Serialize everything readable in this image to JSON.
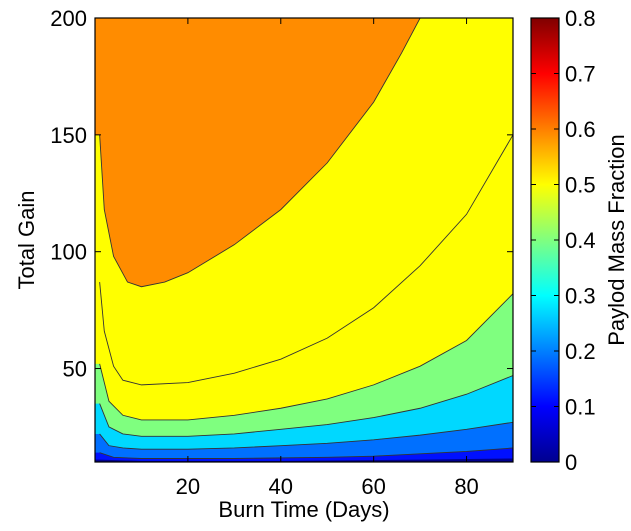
{
  "chart_data": {
    "type": "heatmap",
    "subtype": "filled-contour",
    "title": "",
    "xlabel": "Burn Time (Days)",
    "ylabel": "Total Gain",
    "xlim": [
      0,
      90
    ],
    "ylim": [
      10,
      200
    ],
    "xticks": [
      20,
      40,
      60,
      80
    ],
    "yticks": [
      50,
      100,
      150,
      200
    ],
    "grid": false,
    "colorbar": {
      "label": "Paylod Mass Fraction",
      "range": [
        0,
        0.8
      ],
      "ticks": [
        0,
        0.1,
        0.2,
        0.3,
        0.4,
        0.5,
        0.6,
        0.7,
        0.8
      ],
      "colormap": "jet",
      "placement": "right"
    },
    "contour_levels": [
      0,
      0.1,
      0.2,
      0.3,
      0.4,
      0.5,
      0.6
    ],
    "regions": [
      {
        "level": 0.0,
        "color": "#00008f"
      },
      {
        "level": 0.05,
        "color": "#0010ff"
      },
      {
        "level": 0.15,
        "color": "#0070ff"
      },
      {
        "level": 0.25,
        "color": "#00d8ff"
      },
      {
        "level": 0.35,
        "color": "#7fff7f"
      },
      {
        "level": 0.45,
        "color": "#ffff00"
      },
      {
        "level": 0.55,
        "color": "#ff8c00"
      }
    ],
    "contours": [
      {
        "level": 0.6,
        "points": [
          [
            1,
            150
          ],
          [
            2,
            118
          ],
          [
            4,
            98
          ],
          [
            7,
            87
          ],
          [
            10,
            85
          ],
          [
            15,
            87
          ],
          [
            20,
            91
          ],
          [
            30,
            103
          ],
          [
            40,
            118
          ],
          [
            50,
            138
          ],
          [
            60,
            164
          ],
          [
            66,
            185
          ],
          [
            70,
            200
          ]
        ]
      },
      {
        "level": 0.5,
        "points": [
          [
            1,
            87
          ],
          [
            2,
            66
          ],
          [
            4,
            51
          ],
          [
            6,
            45
          ],
          [
            10,
            43
          ],
          [
            20,
            44
          ],
          [
            30,
            48
          ],
          [
            40,
            54
          ],
          [
            50,
            63
          ],
          [
            60,
            76
          ],
          [
            70,
            94
          ],
          [
            80,
            116
          ],
          [
            90,
            150
          ]
        ]
      },
      {
        "level": 0.4,
        "points": [
          [
            1,
            52
          ],
          [
            3,
            36
          ],
          [
            6,
            30
          ],
          [
            10,
            28
          ],
          [
            20,
            28
          ],
          [
            30,
            30
          ],
          [
            40,
            33
          ],
          [
            50,
            37
          ],
          [
            60,
            43
          ],
          [
            70,
            51
          ],
          [
            80,
            62
          ],
          [
            90,
            82
          ]
        ]
      },
      {
        "level": 0.3,
        "points": [
          [
            1,
            35
          ],
          [
            3,
            25
          ],
          [
            6,
            22
          ],
          [
            10,
            21
          ],
          [
            20,
            21
          ],
          [
            30,
            22
          ],
          [
            40,
            24
          ],
          [
            50,
            26
          ],
          [
            60,
            29
          ],
          [
            70,
            33
          ],
          [
            80,
            39
          ],
          [
            90,
            47
          ]
        ]
      },
      {
        "level": 0.2,
        "points": [
          [
            1,
            22
          ],
          [
            3,
            17
          ],
          [
            6,
            16
          ],
          [
            10,
            15.5
          ],
          [
            20,
            15.5
          ],
          [
            30,
            16
          ],
          [
            40,
            17
          ],
          [
            50,
            18
          ],
          [
            60,
            19.5
          ],
          [
            70,
            21.5
          ],
          [
            80,
            24
          ],
          [
            90,
            27
          ]
        ]
      },
      {
        "level": 0.1,
        "points": [
          [
            1,
            14
          ],
          [
            4,
            12
          ],
          [
            10,
            11.5
          ],
          [
            30,
            11.5
          ],
          [
            50,
            12
          ],
          [
            60,
            12.5
          ],
          [
            70,
            13.5
          ],
          [
            80,
            14.5
          ],
          [
            90,
            16
          ]
        ]
      },
      {
        "level": 0.05,
        "points": [
          [
            1,
            11
          ],
          [
            10,
            10.5
          ],
          [
            40,
            10.5
          ],
          [
            70,
            11
          ],
          [
            90,
            11.5
          ]
        ]
      }
    ]
  }
}
